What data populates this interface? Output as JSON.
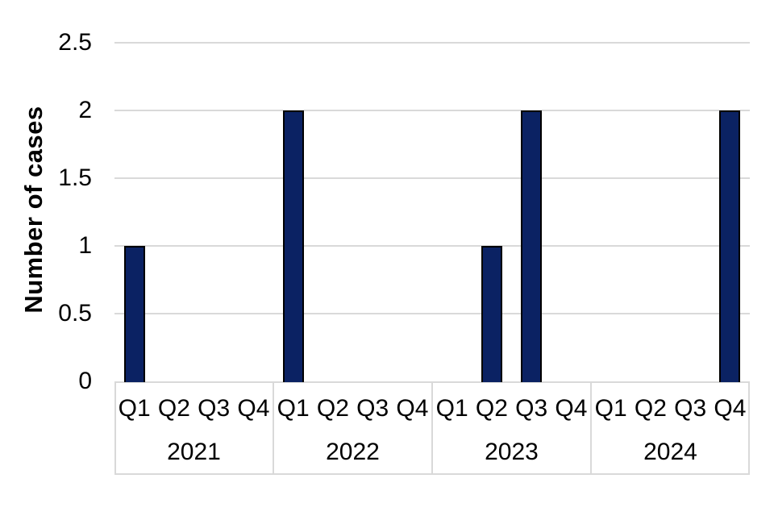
{
  "chart_data": {
    "type": "bar",
    "title": "",
    "xlabel": "",
    "ylabel": "Number of cases",
    "ylim": [
      0,
      2.5
    ],
    "yticks": [
      0,
      0.5,
      1,
      1.5,
      2,
      2.5
    ],
    "grid": true,
    "legend": null,
    "quarter_labels": [
      "Q1",
      "Q2",
      "Q3",
      "Q4"
    ],
    "groups": [
      {
        "year": "2021",
        "quarters": [
          "Q1",
          "Q2",
          "Q3",
          "Q4"
        ],
        "values": [
          1,
          0,
          0,
          0
        ]
      },
      {
        "year": "2022",
        "quarters": [
          "Q1",
          "Q2",
          "Q3",
          "Q4"
        ],
        "values": [
          2,
          0,
          0,
          0
        ]
      },
      {
        "year": "2023",
        "quarters": [
          "Q1",
          "Q2",
          "Q3",
          "Q4"
        ],
        "values": [
          0,
          1,
          2,
          0
        ]
      },
      {
        "year": "2024",
        "quarters": [
          "Q1",
          "Q2",
          "Q3",
          "Q4"
        ],
        "values": [
          0,
          0,
          0,
          2
        ]
      }
    ],
    "colors": {
      "bar_fill": "#0B2263",
      "bar_border": "#000000",
      "gridline": "#D9D9D9",
      "axis_table_border": "#D9D9D9",
      "text": "#000000",
      "background": "#FFFFFF"
    }
  }
}
